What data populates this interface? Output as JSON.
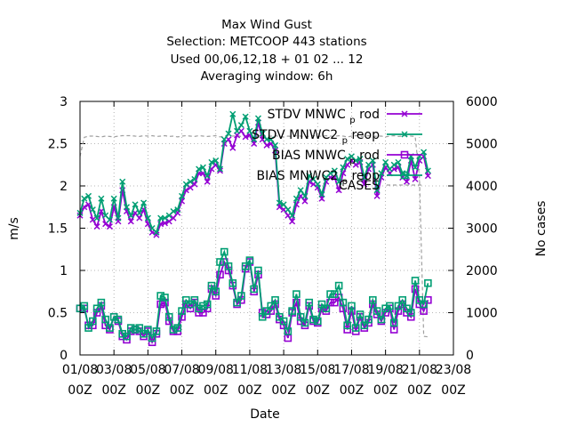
{
  "chart_data": {
    "type": "line",
    "title_lines": [
      "Max Wind Gust",
      "Selection: METCOOP    443 stations",
      "Used  00,06,12,18 + 01 02 ... 12",
      "Averaging window:  6h"
    ],
    "xlabel": "Date",
    "ylabel": "m/s",
    "y2label": "No cases",
    "ylim": [
      0,
      3
    ],
    "y2lim": [
      0,
      6000
    ],
    "yticks": [
      "0",
      "0.5",
      "1",
      "1.5",
      "2",
      "2.5",
      "3"
    ],
    "y2ticks": [
      "0",
      "1000",
      "2000",
      "3000",
      "4000",
      "5000",
      "6000"
    ],
    "xticks": [
      {
        "date": "01/08",
        "hour": "00Z"
      },
      {
        "date": "03/08",
        "hour": "00Z"
      },
      {
        "date": "05/08",
        "hour": "00Z"
      },
      {
        "date": "07/08",
        "hour": "00Z"
      },
      {
        "date": "09/08",
        "hour": "00Z"
      },
      {
        "date": "11/08",
        "hour": "00Z"
      },
      {
        "date": "13/08",
        "hour": "00Z"
      },
      {
        "date": "15/08",
        "hour": "00Z"
      },
      {
        "date": "17/08",
        "hour": "00Z"
      },
      {
        "date": "19/08",
        "hour": "00Z"
      },
      {
        "date": "21/08",
        "hour": "00Z"
      },
      {
        "date": "23/08",
        "hour": "00Z"
      }
    ],
    "grid": true,
    "legend_position": "top-right",
    "x_start": "2020-08-01T00:00Z",
    "x_step_hours": 6,
    "series": [
      {
        "name": "STDV MNWC_prod",
        "label_main": "STDV MNWC",
        "label_sub": "p",
        "label_end": "rod",
        "color": "#9400d3",
        "marker": "x",
        "axis": "y1",
        "values": [
          1.65,
          1.75,
          1.78,
          1.6,
          1.52,
          1.7,
          1.55,
          1.52,
          1.75,
          1.58,
          1.95,
          1.7,
          1.58,
          1.68,
          1.62,
          1.72,
          1.55,
          1.45,
          1.42,
          1.55,
          1.56,
          1.58,
          1.62,
          1.68,
          1.82,
          1.95,
          1.98,
          2.02,
          2.15,
          2.15,
          2.05,
          2.2,
          2.25,
          2.18,
          2.5,
          2.55,
          2.45,
          2.6,
          2.65,
          2.58,
          2.6,
          2.5,
          2.75,
          2.55,
          2.48,
          2.5,
          2.42,
          1.75,
          1.72,
          1.65,
          1.58,
          1.78,
          1.88,
          1.82,
          2.05,
          2.02,
          1.98,
          1.85,
          2.05,
          2.1,
          2.1,
          1.95,
          2.15,
          2.25,
          2.3,
          2.25,
          2.28,
          2.02,
          2.2,
          2.25,
          1.88,
          2.1,
          2.22,
          2.15,
          2.2,
          2.22,
          2.1,
          2.05,
          2.3,
          2.08,
          2.3,
          2.35,
          2.12
        ]
      },
      {
        "name": "STDV MNWC2_preop",
        "label_main": "STDV MNWC2",
        "label_sub": "p",
        "label_end": "reop",
        "color": "#009e73",
        "marker": "x",
        "axis": "y1",
        "values": [
          1.68,
          1.85,
          1.88,
          1.72,
          1.62,
          1.85,
          1.65,
          1.6,
          1.85,
          1.62,
          2.05,
          1.75,
          1.65,
          1.78,
          1.68,
          1.8,
          1.62,
          1.5,
          1.45,
          1.62,
          1.62,
          1.65,
          1.7,
          1.72,
          1.88,
          2.02,
          2.05,
          2.08,
          2.2,
          2.22,
          2.12,
          2.28,
          2.3,
          2.2,
          2.55,
          2.62,
          2.85,
          2.65,
          2.72,
          2.82,
          2.65,
          2.55,
          2.8,
          2.62,
          2.55,
          2.55,
          2.48,
          1.8,
          1.78,
          1.72,
          1.65,
          1.85,
          1.95,
          1.88,
          2.12,
          2.08,
          2.02,
          1.9,
          2.1,
          2.15,
          2.18,
          2.05,
          2.22,
          2.32,
          2.35,
          2.3,
          2.32,
          2.1,
          2.25,
          2.3,
          1.95,
          2.15,
          2.28,
          2.2,
          2.25,
          2.28,
          2.15,
          2.12,
          2.35,
          2.22,
          2.35,
          2.4,
          2.18
        ]
      },
      {
        "name": "BIAS MNWC_prod",
        "label_main": "BIAS MNWC",
        "label_sub": "p",
        "label_end": "rod",
        "color": "#9400d3",
        "marker": "square",
        "axis": "y1",
        "values": [
          0.55,
          0.55,
          0.35,
          0.35,
          0.5,
          0.58,
          0.35,
          0.3,
          0.45,
          0.4,
          0.22,
          0.18,
          0.28,
          0.3,
          0.28,
          0.22,
          0.28,
          0.15,
          0.25,
          0.6,
          0.62,
          0.4,
          0.28,
          0.28,
          0.45,
          0.6,
          0.55,
          0.62,
          0.5,
          0.5,
          0.55,
          0.78,
          0.7,
          0.95,
          1.1,
          1.0,
          0.82,
          0.6,
          0.65,
          1.02,
          1.1,
          0.75,
          0.95,
          0.5,
          0.48,
          0.52,
          0.6,
          0.42,
          0.35,
          0.2,
          0.5,
          0.62,
          0.4,
          0.35,
          0.58,
          0.4,
          0.38,
          0.55,
          0.52,
          0.62,
          0.62,
          0.68,
          0.55,
          0.3,
          0.52,
          0.28,
          0.45,
          0.32,
          0.38,
          0.6,
          0.48,
          0.4,
          0.5,
          0.55,
          0.3,
          0.52,
          0.6,
          0.5,
          0.45,
          0.78,
          0.6,
          0.52,
          0.65
        ]
      },
      {
        "name": "BIAS MNWC2_preop",
        "label_main": "BIAS MNWC2",
        "label_sub": "p",
        "label_end": "reop",
        "color": "#009e73",
        "marker": "square",
        "axis": "y1",
        "values": [
          0.55,
          0.58,
          0.32,
          0.4,
          0.55,
          0.62,
          0.42,
          0.32,
          0.45,
          0.42,
          0.25,
          0.22,
          0.32,
          0.3,
          0.32,
          0.25,
          0.3,
          0.2,
          0.28,
          0.7,
          0.68,
          0.45,
          0.3,
          0.32,
          0.52,
          0.65,
          0.6,
          0.65,
          0.55,
          0.58,
          0.6,
          0.82,
          0.75,
          1.1,
          1.22,
          1.05,
          0.85,
          0.62,
          0.7,
          1.05,
          1.12,
          0.78,
          1.0,
          0.45,
          0.52,
          0.58,
          0.65,
          0.45,
          0.4,
          0.28,
          0.52,
          0.72,
          0.45,
          0.38,
          0.62,
          0.42,
          0.4,
          0.6,
          0.55,
          0.72,
          0.72,
          0.82,
          0.62,
          0.35,
          0.58,
          0.32,
          0.48,
          0.35,
          0.42,
          0.65,
          0.52,
          0.42,
          0.55,
          0.58,
          0.38,
          0.58,
          0.65,
          0.55,
          0.5,
          0.88,
          0.65,
          0.6,
          0.85
        ]
      },
      {
        "name": "CASES",
        "label_main": "CASES",
        "label_sub": "",
        "label_end": "",
        "color": "#a0a0a0",
        "marker": "none",
        "dashed": true,
        "axis": "y2",
        "values": [
          4700,
          5150,
          5180,
          5180,
          5170,
          5160,
          5180,
          5170,
          5160,
          5180,
          5190,
          5190,
          5190,
          5180,
          5170,
          5190,
          5180,
          5190,
          5170,
          5180,
          5190,
          5170,
          5180,
          5160,
          5180,
          5190,
          5180,
          5170,
          5190,
          5180,
          5170,
          5180,
          5190,
          5160,
          5180,
          5190,
          5180,
          5190,
          5170,
          5180,
          5190,
          5170,
          5180,
          5190,
          5170,
          5180,
          5190,
          5170,
          5160,
          5180,
          5170,
          5190,
          5180,
          5160,
          5180,
          5190,
          5170,
          5180,
          5190,
          5180,
          5170,
          5190,
          5180,
          5160,
          5180,
          5190,
          5170,
          5180,
          5190,
          5170,
          5180,
          5180,
          5160,
          5180,
          5190,
          5170,
          5180,
          5190,
          5180,
          5170,
          4200,
          440,
          430
        ]
      }
    ]
  }
}
